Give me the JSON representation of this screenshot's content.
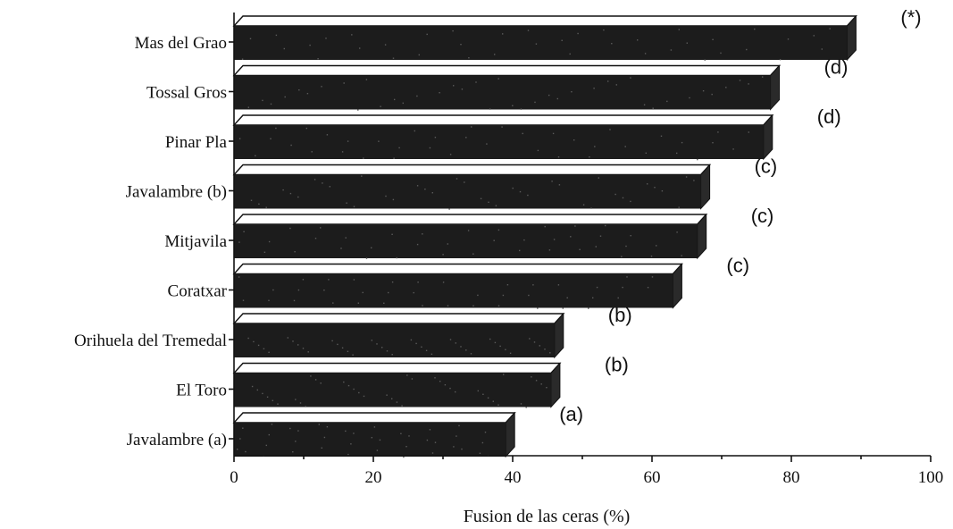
{
  "chart_data": {
    "type": "bar",
    "orientation": "horizontal",
    "categories": [
      "Mas del Grao",
      "Tossal Gros",
      "Pinar Pla",
      "Javalambre (b)",
      "Mitjavila",
      "Coratxar",
      "Orihuela del Tremedal",
      "El Toro",
      "Javalambre (a)"
    ],
    "values": [
      88,
      77,
      76,
      67,
      66.5,
      63,
      46,
      45.5,
      39
    ],
    "annotations": [
      "(*)",
      "(d)",
      "(d)",
      "(c)",
      "(c)",
      "(c)",
      "(b)",
      "(b)",
      "(a)"
    ],
    "xlabel": "Fusion de las ceras (%)",
    "ylabel": "",
    "title": "",
    "xlim": [
      0,
      100
    ],
    "xticks": [
      0,
      20,
      40,
      60,
      80,
      100
    ],
    "grid": false,
    "bar_color": "#1c1c1c",
    "bar_style": "3d"
  }
}
